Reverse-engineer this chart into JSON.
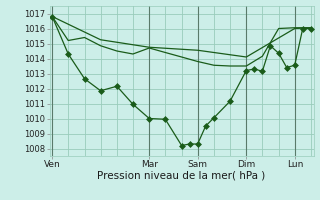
{
  "bg_color": "#cceee8",
  "grid_color": "#99ccbb",
  "line_color": "#1a5c1a",
  "ylim": [
    1007.5,
    1017.5
  ],
  "yticks": [
    1008,
    1009,
    1010,
    1011,
    1012,
    1013,
    1014,
    1015,
    1016,
    1017
  ],
  "xlabel": "Pression niveau de la mer( hPa )",
  "day_labels": [
    "Ven",
    "Mar",
    "Sam",
    "Dim",
    "Lun"
  ],
  "day_positions": [
    0.0,
    0.375,
    0.5625,
    0.75,
    0.9375
  ],
  "vline_color": "#5a7a6a",
  "line2_x": [
    0.0,
    0.062,
    0.125,
    0.187,
    0.25,
    0.312,
    0.375,
    0.437,
    0.5,
    0.531,
    0.562,
    0.593,
    0.625,
    0.687,
    0.75,
    0.781,
    0.812,
    0.843,
    0.875,
    0.906,
    0.937,
    0.968,
    1.0
  ],
  "line2_y": [
    1016.8,
    1014.3,
    1012.65,
    1011.85,
    1012.15,
    1010.95,
    1010.0,
    1009.95,
    1008.2,
    1008.3,
    1008.3,
    1009.5,
    1010.05,
    1011.15,
    1013.2,
    1013.3,
    1013.15,
    1014.85,
    1014.35,
    1013.4,
    1013.55,
    1016.0,
    1016.0
  ],
  "line1_x": [
    0.0,
    0.062,
    0.125,
    0.187,
    0.25,
    0.312,
    0.375,
    0.437,
    0.5,
    0.562,
    0.625,
    0.687,
    0.75,
    0.812,
    0.875,
    0.937,
    1.0
  ],
  "line1_y": [
    1016.8,
    1015.2,
    1015.4,
    1014.85,
    1014.5,
    1014.3,
    1014.7,
    1014.4,
    1014.1,
    1013.8,
    1013.55,
    1013.5,
    1013.5,
    1014.15,
    1016.0,
    1016.05,
    1016.05
  ],
  "line3_x": [
    0.0,
    0.187,
    0.375,
    0.562,
    0.75,
    0.937,
    1.0
  ],
  "line3_y": [
    1016.8,
    1015.25,
    1014.75,
    1014.55,
    1014.1,
    1016.0,
    1016.05
  ]
}
